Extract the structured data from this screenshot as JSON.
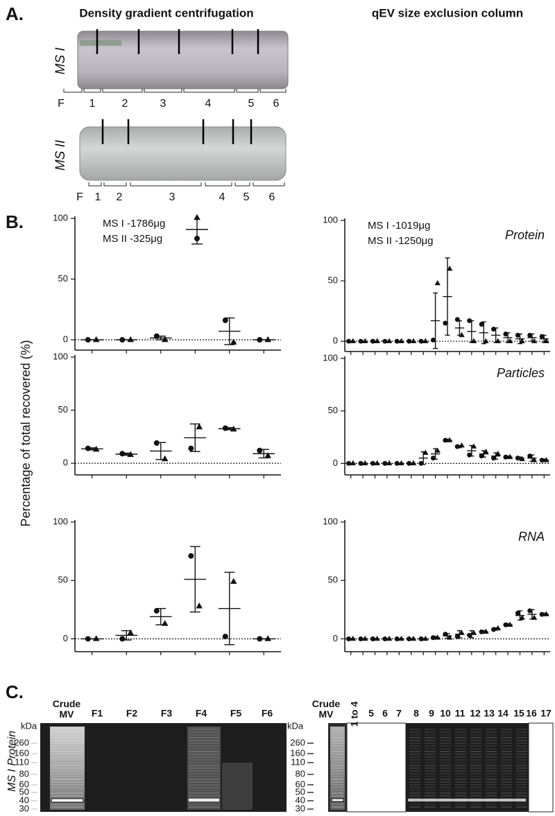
{
  "panel_a": {
    "label": "A.",
    "headers": [
      "Density gradient centrifugation",
      "qEV size exclusion column"
    ],
    "tubes": [
      {
        "name": "MS I",
        "fractions": [
          "F",
          "1",
          "2",
          "3",
          "4",
          "5",
          "6"
        ]
      },
      {
        "name": "MS II",
        "fractions": [
          "F",
          "1",
          "2",
          "3",
          "4",
          "5",
          "6"
        ]
      }
    ]
  },
  "panel_b": {
    "label": "B.",
    "y_label": "Percentage of total recovered (%)"
  },
  "chart_data": [
    {
      "type": "scatter",
      "categories": [
        null,
        null,
        null,
        null,
        null,
        null
      ],
      "series": [
        {
          "name": "MS I -1786μg",
          "marker": "triangle",
          "color": "#111111",
          "values": [
            0,
            0,
            0,
            null,
            -2,
            0
          ]
        },
        {
          "name": "MS II -325μg",
          "marker": "circle",
          "color": "#111111",
          "values": [
            0,
            0,
            3,
            null,
            16,
            0
          ]
        }
      ],
      "means": [
        0,
        0,
        1.5,
        null,
        7,
        0
      ],
      "errors": [
        0,
        0,
        1.5,
        null,
        11,
        0
      ],
      "ylim": [
        -8.5,
        100
      ],
      "yticks": [
        0,
        50,
        100
      ],
      "zero_line": true,
      "legend": "top-left",
      "legend_marker": true
    },
    {
      "type": "scatter",
      "categories": [
        null,
        null,
        null,
        null,
        null,
        null
      ],
      "series": [
        {
          "marker": "triangle",
          "color": "#111111",
          "values": [
            13,
            8,
            4,
            34,
            32,
            7
          ]
        },
        {
          "marker": "circle",
          "color": "#111111",
          "values": [
            14,
            9,
            19,
            14,
            33,
            12
          ]
        }
      ],
      "means": [
        13.5,
        8.5,
        11.5,
        24,
        32.5,
        9
      ],
      "errors": [
        1,
        1,
        8,
        13,
        1,
        4
      ],
      "ylim": [
        -11,
        100
      ],
      "yticks": [
        0,
        50,
        100
      ],
      "zero_line": true
    },
    {
      "type": "scatter",
      "categories": [
        null,
        null,
        null,
        null,
        null,
        null
      ],
      "series": [
        {
          "marker": "triangle",
          "color": "#111111",
          "values": [
            0,
            5,
            13,
            28,
            49,
            0
          ]
        },
        {
          "marker": "circle",
          "color": "#111111",
          "values": [
            0,
            0,
            24,
            71,
            2,
            0
          ]
        }
      ],
      "means": [
        0,
        3,
        19,
        51,
        26,
        0
      ],
      "errors": [
        0,
        4,
        7,
        28,
        31,
        0
      ],
      "ylim": [
        -11,
        100
      ],
      "yticks": [
        0,
        50,
        100
      ],
      "zero_line": true
    },
    {
      "type": "scatter",
      "title": "Protein",
      "categories": [
        null,
        null,
        null,
        null,
        null,
        null,
        null,
        null,
        null,
        null,
        null,
        null,
        null,
        null,
        null,
        null,
        null
      ],
      "series": [
        {
          "name": "MS I -1019μg",
          "marker": "triangle",
          "color": "#111111",
          "values": [
            0,
            0,
            0,
            0,
            0,
            0,
            0,
            48,
            60,
            5,
            0,
            0,
            0,
            0,
            0,
            0,
            0
          ]
        },
        {
          "name": "MS II -1250μg",
          "marker": "circle",
          "color": "#111111",
          "values": [
            0,
            0,
            0,
            0,
            0,
            0,
            0,
            1,
            15,
            18,
            17,
            14,
            10,
            6,
            5,
            5,
            4
          ]
        }
      ],
      "means": [
        0,
        0,
        0,
        0,
        0,
        0,
        0,
        17,
        37,
        11,
        8,
        7,
        5,
        3,
        2,
        3,
        2
      ],
      "errors": [
        0,
        0,
        0,
        0,
        0,
        0,
        0,
        23,
        32,
        6,
        9,
        9,
        6,
        4,
        4,
        3,
        3
      ],
      "ylim": [
        -8.5,
        100
      ],
      "yticks": [
        0,
        50,
        100
      ],
      "zero_line": true,
      "legend": "top-left",
      "legend_marker": false
    },
    {
      "type": "scatter",
      "title": "Particles",
      "categories": [
        null,
        null,
        null,
        null,
        null,
        null,
        null,
        null,
        null,
        null,
        null,
        null,
        null,
        null,
        null,
        null,
        null
      ],
      "series": [
        {
          "marker": "triangle",
          "color": "#111111",
          "values": [
            0,
            0,
            0,
            0,
            0,
            0,
            10,
            12,
            22,
            17,
            16,
            11,
            9,
            6,
            4,
            3,
            3
          ]
        },
        {
          "marker": "circle",
          "color": "#111111",
          "values": [
            0,
            0,
            0,
            0,
            0,
            0,
            0,
            5,
            22,
            16,
            8,
            7,
            5,
            6,
            5,
            7,
            3
          ]
        }
      ],
      "means": [
        0,
        0,
        0,
        0,
        0,
        0,
        5,
        9,
        22,
        16,
        12,
        9,
        7,
        6,
        5,
        5,
        3
      ],
      "errors": [
        0,
        0,
        0,
        0,
        0,
        0,
        6,
        5,
        1,
        1,
        5,
        3,
        3,
        1,
        1,
        3,
        1
      ],
      "ylim": [
        -11,
        100
      ],
      "yticks": [
        0,
        50,
        100
      ],
      "zero_line": true
    },
    {
      "type": "scatter",
      "title": "RNA",
      "categories": [
        null,
        null,
        null,
        null,
        null,
        null,
        null,
        null,
        null,
        null,
        null,
        null,
        null,
        null,
        null,
        null,
        null
      ],
      "series": [
        {
          "marker": "triangle",
          "color": "#111111",
          "values": [
            0,
            0,
            0,
            0,
            0,
            0,
            0,
            1,
            1,
            5,
            5,
            6,
            9,
            12,
            18,
            18,
            21
          ]
        },
        {
          "marker": "circle",
          "color": "#111111",
          "values": [
            0,
            0,
            0,
            0,
            0,
            0,
            0,
            1,
            4,
            2,
            3,
            6,
            8,
            12,
            22,
            24,
            21
          ]
        }
      ],
      "means": [
        0,
        0,
        0,
        0,
        0,
        0,
        0,
        1,
        2.5,
        4,
        4,
        6,
        8.5,
        12,
        20,
        21,
        21
      ],
      "errors": [
        0,
        0,
        0,
        0,
        0,
        0,
        0,
        1,
        2,
        3,
        3,
        1,
        1,
        1,
        4,
        4,
        1
      ],
      "ylim": [
        -11,
        100
      ],
      "yticks": [
        0,
        50,
        100
      ],
      "zero_line": true
    }
  ],
  "panel_c": {
    "label": "C.",
    "y_label": "MS I Protein",
    "gels": [
      {
        "lanes": [
          "Crude MV",
          "F1",
          "F2",
          "F3",
          "F4",
          "F5",
          "F6"
        ],
        "kda_label": "kDa",
        "markers": [
          260,
          160,
          110,
          80,
          60,
          50,
          40,
          30
        ]
      },
      {
        "lanes": [
          "Crude MV",
          "1 to 4",
          "5",
          "6",
          "7",
          "8",
          "9",
          "10",
          "11",
          "12",
          "13",
          "14",
          "15",
          "16",
          "17"
        ],
        "kda_label": "kDa",
        "markers": [
          260,
          160,
          110,
          80,
          60,
          50,
          40,
          30
        ]
      }
    ]
  }
}
